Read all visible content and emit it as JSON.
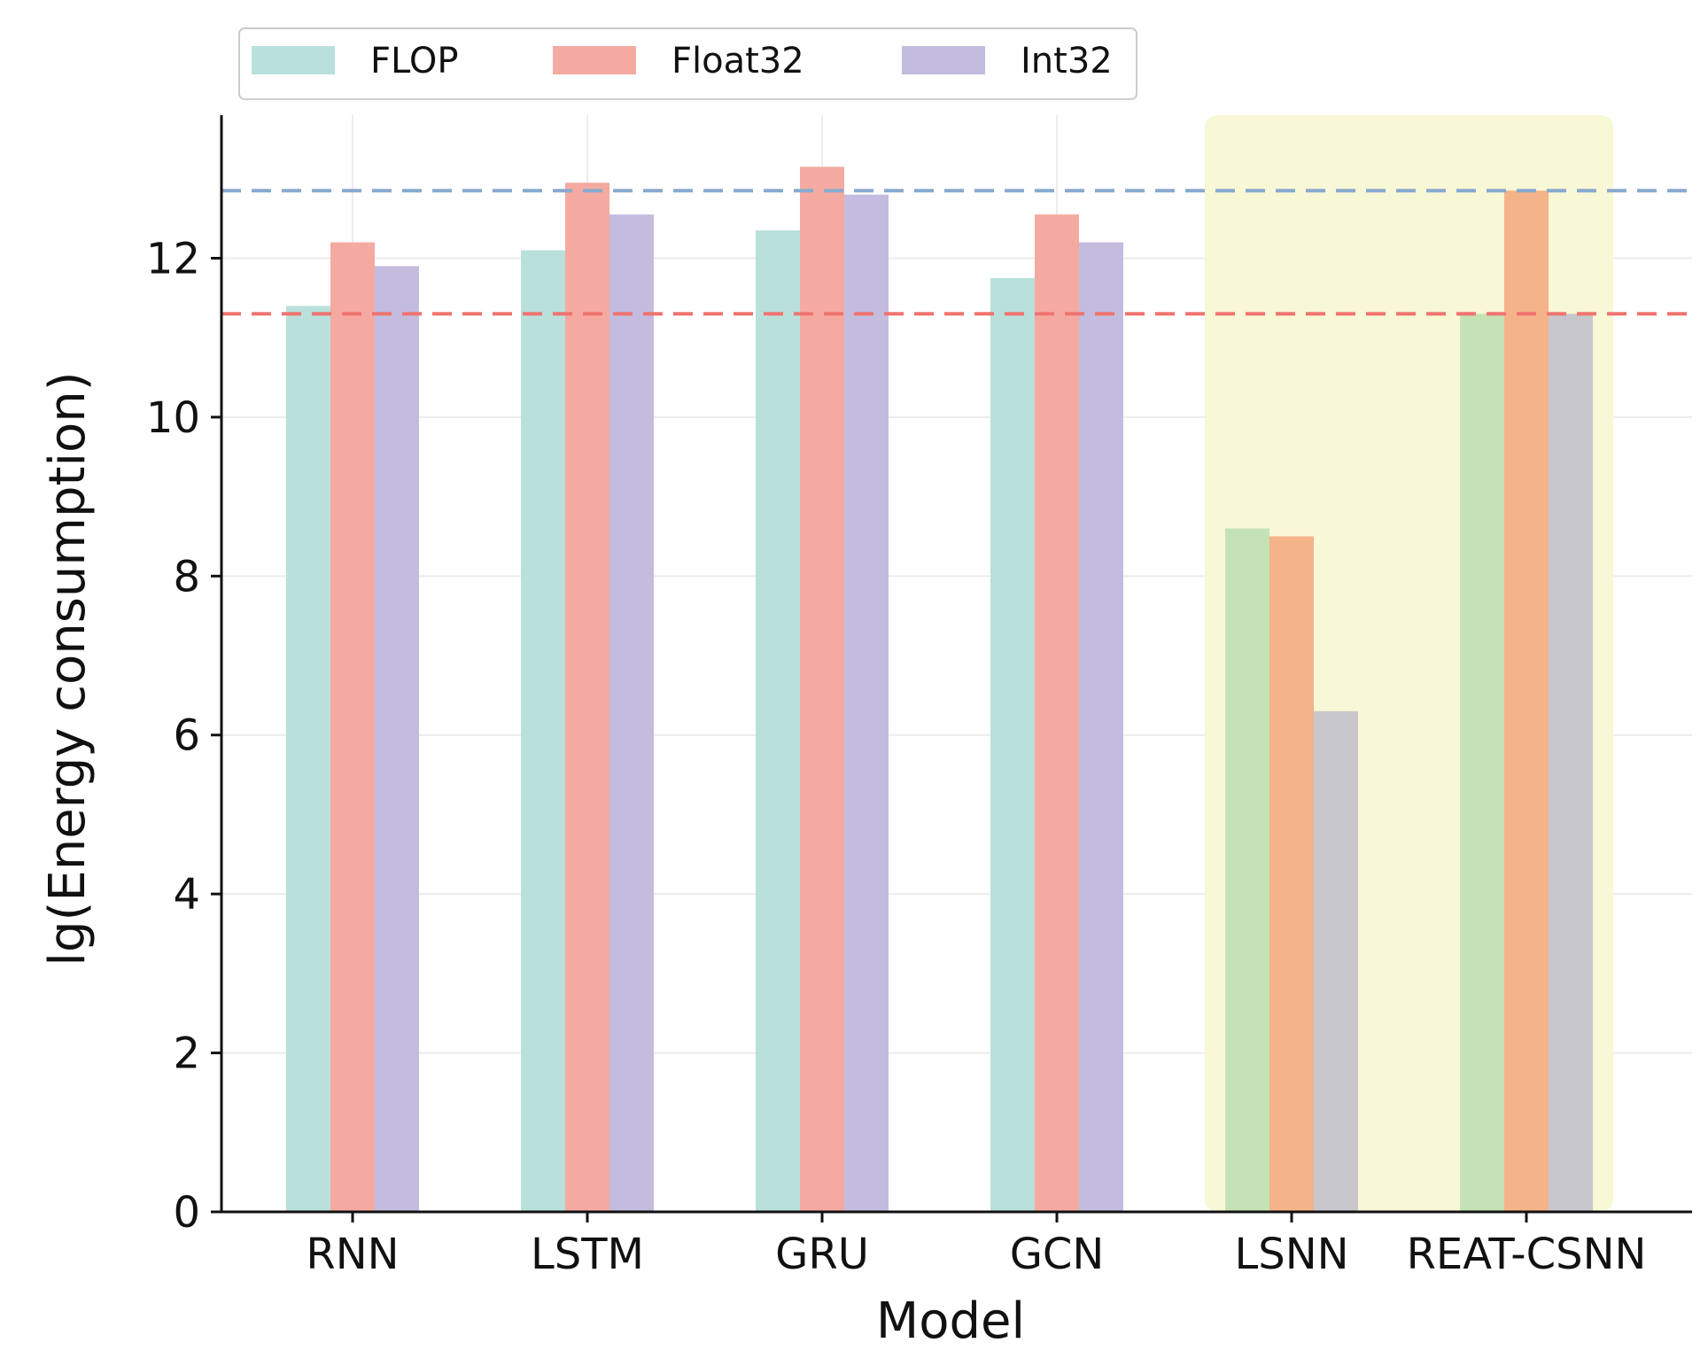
{
  "chart_data": {
    "type": "bar",
    "title": "",
    "xlabel": "Model",
    "ylabel": "lg(Energy consumption)",
    "ylim": [
      0,
      13.8
    ],
    "yticks": [
      0,
      2,
      4,
      6,
      8,
      10,
      12
    ],
    "grid": true,
    "legend_position": "top-left",
    "categories": [
      "RNN",
      "LSTM",
      "GRU",
      "GCN",
      "LSNN",
      "REAT-CSNN"
    ],
    "series": [
      {
        "name": "FLOP",
        "color": "#b9e0da",
        "values": [
          11.4,
          12.1,
          12.35,
          11.75,
          8.6,
          11.3
        ]
      },
      {
        "name": "Float32",
        "color": "#f4aaa0",
        "values": [
          12.2,
          12.95,
          13.15,
          12.55,
          8.5,
          12.85
        ]
      },
      {
        "name": "Int32",
        "color": "#c3bcdf",
        "values": [
          11.9,
          12.55,
          12.8,
          12.2,
          6.3,
          11.3
        ]
      }
    ],
    "highlight": {
      "categories": [
        "LSNN",
        "REAT-CSNN"
      ],
      "band_color": "#f8f7d6",
      "series_colors": [
        "#c5e2b4",
        "#f5b389",
        "#c7c7cb"
      ]
    },
    "reference_lines": [
      {
        "value": 12.85,
        "color": "#88a9cf",
        "style": "dashed"
      },
      {
        "value": 11.3,
        "color": "#ef7470",
        "style": "dashed"
      }
    ]
  }
}
